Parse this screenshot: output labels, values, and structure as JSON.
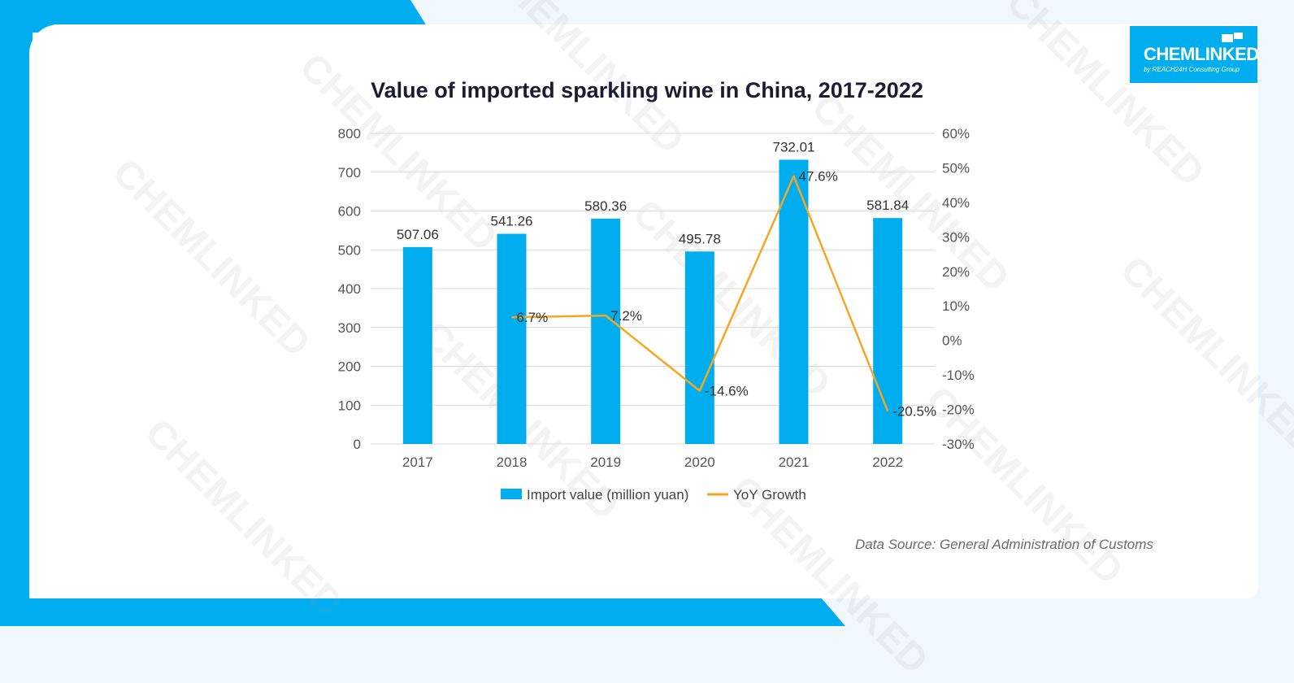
{
  "brand": {
    "logo_text": "CHEMLINKED",
    "logo_subtext": "by REACH24H Consulting Group",
    "watermark_text": "CHEMLINKED",
    "accent_color": "#00aeef"
  },
  "source_note": "Data Source: General Administration of Customs",
  "chart_data": {
    "type": "bar",
    "title": "Value of imported sparkling wine in China, 2017-2022",
    "categories": [
      "2017",
      "2018",
      "2019",
      "2020",
      "2021",
      "2022"
    ],
    "series": [
      {
        "name": "Import value (million yuan)",
        "type": "bar",
        "axis": "left",
        "color": "#00aeef",
        "values": [
          507.06,
          541.26,
          580.36,
          495.78,
          732.01,
          581.84
        ],
        "labels": [
          "507.06",
          "541.26",
          "580.36",
          "495.78",
          "732.01",
          "581.84"
        ]
      },
      {
        "name": "YoY Growth",
        "type": "line",
        "axis": "right",
        "color": "#f5a623",
        "values": [
          null,
          6.7,
          7.2,
          -14.6,
          47.6,
          -20.5
        ],
        "labels": [
          "",
          "6.7%",
          "7.2%",
          "-14.6%",
          "47.6%",
          "-20.5%"
        ]
      }
    ],
    "y_left": {
      "min": 0,
      "max": 800,
      "ticks": [
        "0",
        "100",
        "200",
        "300",
        "400",
        "500",
        "600",
        "700",
        "800"
      ]
    },
    "y_right": {
      "min": -30,
      "max": 60,
      "ticks": [
        "-30%",
        "-20%",
        "-10%",
        "0%",
        "10%",
        "20%",
        "30%",
        "40%",
        "50%",
        "60%"
      ]
    },
    "grid": true,
    "legend_position": "bottom"
  }
}
